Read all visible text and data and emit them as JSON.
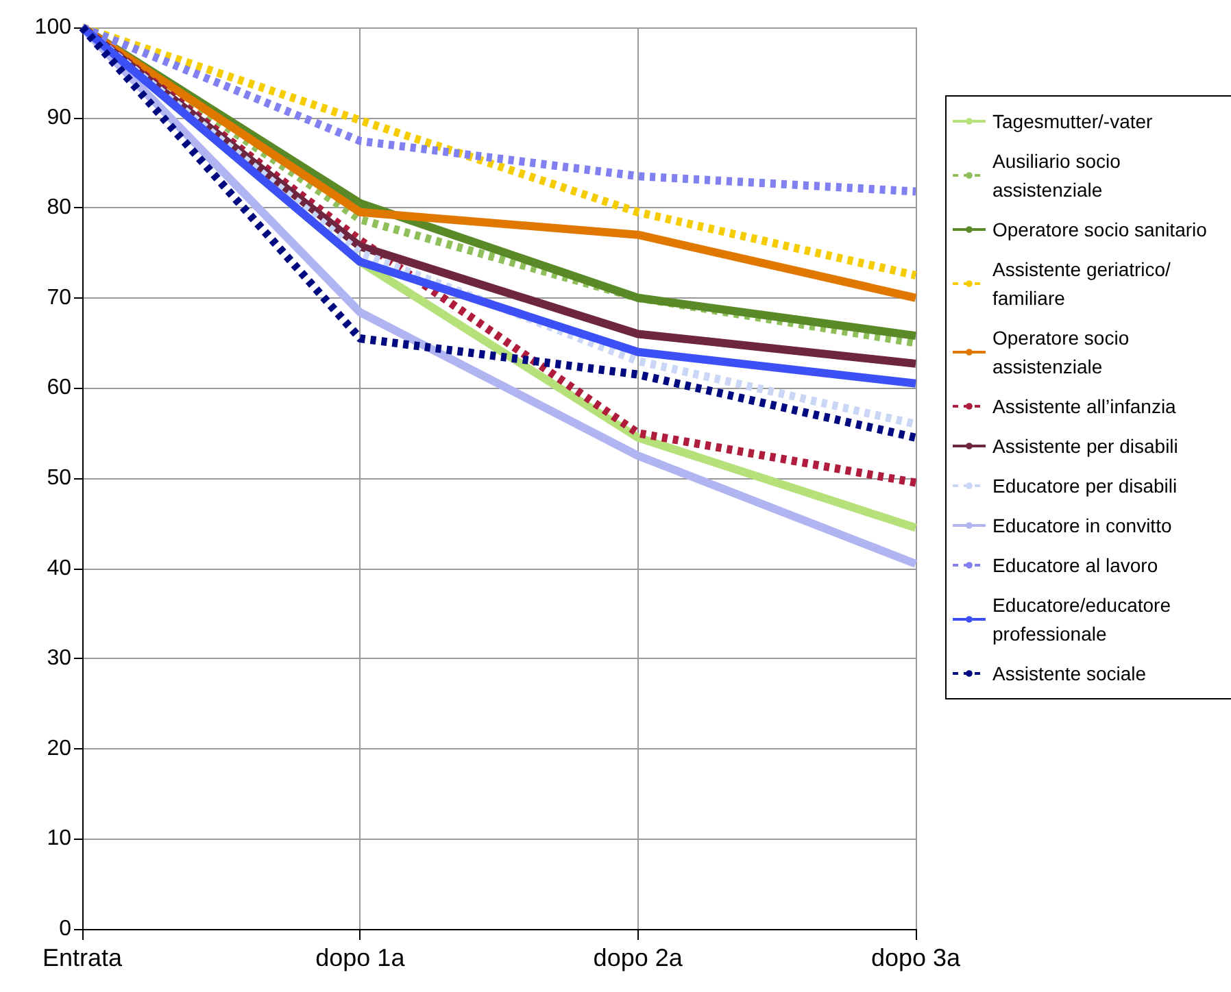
{
  "chart_data": {
    "type": "line",
    "categories": [
      "Entrata",
      "dopo 1a",
      "dopo 2a",
      "dopo 3a"
    ],
    "ylim": [
      0,
      100
    ],
    "yticks": [
      0,
      10,
      20,
      30,
      40,
      50,
      60,
      70,
      80,
      90,
      100
    ],
    "grid": true,
    "legend": "right",
    "marker": "none",
    "series": [
      {
        "name": "Tagesmutter/-vater",
        "color": "#b6e07a",
        "line_style": "solid",
        "values": [
          100,
          74,
          54.5,
          44.5
        ]
      },
      {
        "name": "Ausiliario socio assistenziale",
        "color": "#8fbf5a",
        "line_style": "dotted",
        "values": [
          100,
          78.7,
          70,
          65
        ]
      },
      {
        "name": "Operatore socio sanitario",
        "color": "#5a8a28",
        "line_style": "solid",
        "values": [
          100,
          80.5,
          70,
          65.8
        ]
      },
      {
        "name": "Assistente geriatrico/familiare",
        "color": "#f5cc00",
        "line_style": "dotted",
        "values": [
          100,
          89.7,
          79.5,
          72.5
        ]
      },
      {
        "name": "Operatore socio assistenziale",
        "color": "#e07800",
        "line_style": "solid",
        "values": [
          100,
          79.5,
          77,
          70
        ]
      },
      {
        "name": "Assistente all’infanzia",
        "color": "#b01c3c",
        "line_style": "dotted",
        "values": [
          100,
          76.4,
          55,
          49.5
        ]
      },
      {
        "name": "Assistente per disabili",
        "color": "#6e2540",
        "line_style": "solid",
        "values": [
          100,
          75.7,
          66,
          62.7
        ]
      },
      {
        "name": "Educatore per disabili",
        "color": "#c9d6f5",
        "line_style": "dotted",
        "values": [
          100,
          75,
          63,
          56
        ]
      },
      {
        "name": "Educatore in convitto",
        "color": "#b0b4f0",
        "line_style": "solid",
        "values": [
          100,
          68.4,
          52.5,
          40.5
        ]
      },
      {
        "name": "Educatore al lavoro",
        "color": "#8080f0",
        "line_style": "dotted",
        "values": [
          100,
          87.4,
          83.5,
          81.8
        ]
      },
      {
        "name": "Educatore/educatore professionale",
        "color": "#3c50f5",
        "line_style": "solid",
        "values": [
          100,
          74,
          64,
          60.5
        ]
      },
      {
        "name": "Assistente sociale",
        "color": "#000a80",
        "line_style": "dotted",
        "values": [
          100,
          65.5,
          61.5,
          54.5
        ]
      }
    ]
  }
}
